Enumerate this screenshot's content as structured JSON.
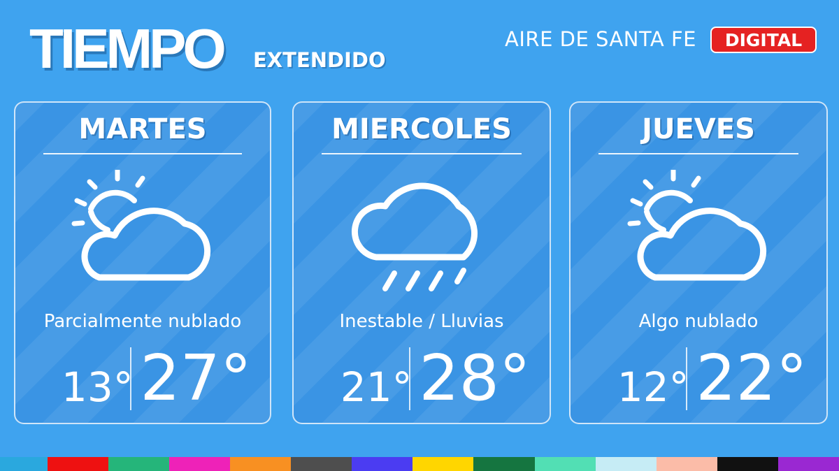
{
  "header": {
    "title": "TIEMPO",
    "subtitle": "EXTENDIDO",
    "brand_name": "AIRE DE SANTA FE",
    "brand_badge": "DIGITAL"
  },
  "days": [
    {
      "day": "MARTES",
      "icon": "partly-cloudy-icon",
      "description": "Parcialmente nublado",
      "min": "13°",
      "max": "27°"
    },
    {
      "day": "MIERCOLES",
      "icon": "rain-cloud-icon",
      "description": "Inestable / Lluvias",
      "min": "21°",
      "max": "28°"
    },
    {
      "day": "JUEVES",
      "icon": "partly-cloudy-icon",
      "description": "Algo nublado",
      "min": "12°",
      "max": "22°"
    }
  ],
  "colors": {
    "background": "#3fa3ef",
    "card": "#3a94e4",
    "badge": "#e52222",
    "bottom_stripe": [
      "#2aa8de",
      "#ee1111",
      "#25b57a",
      "#ee22b8",
      "#f89022",
      "#4e4e4e",
      "#4b3cf2",
      "#ffd600",
      "#157540",
      "#52dfb4",
      "#c6ecf5",
      "#fbbca8",
      "#111111",
      "#9a28d2"
    ]
  }
}
